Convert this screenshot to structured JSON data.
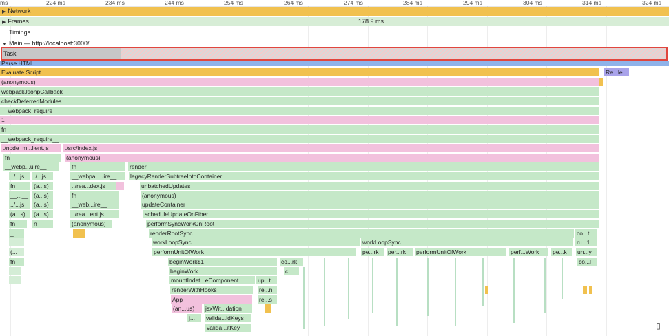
{
  "ruler": {
    "ticks": [
      "ms",
      "224 ms",
      "234 ms",
      "244 ms",
      "254 ms",
      "264 ms",
      "274 ms",
      "284 ms",
      "294 ms",
      "304 ms",
      "314 ms",
      "324 ms"
    ]
  },
  "tracks": {
    "network": "Network",
    "frames": "Frames",
    "frames_value": "178.9 ms",
    "timings": "Timings",
    "main": "Main — http://localhost:3000/"
  },
  "task": {
    "label": "Task"
  },
  "flame": {
    "parse_html": "Parse HTML",
    "evaluate_script": "Evaluate Script",
    "rele": "Re...le",
    "anonymous": "(anonymous)",
    "webpack_jsonp": "webpackJsonpCallback",
    "check_deferred": "checkDeferredModules",
    "webpack_require": "__webpack_require__",
    "one": "1",
    "fn": "fn",
    "webpack_require2": "__webpack_require__",
    "node_m": "./node_m...lient.js",
    "src_index": "./src/index.js",
    "fn2": "fn",
    "anonymous2": "(anonymous)",
    "webp_uire": "__webp...uire__",
    "fn3": "fn",
    "render": "render",
    "js1": "../...js",
    "js2": "./...js",
    "webpa_uire": "__webpa...uire__",
    "legacy": "legacyRenderSubtreeIntoContainer",
    "fn4": "fn",
    "as1": "(a...s)",
    "rea_dex": "../rea...dex.js",
    "unbatched": "unbatchedUpdates",
    "dots1": "__...__",
    "as2": "(a...s)",
    "fn5": "fn",
    "anonymous3": "(anonymous)",
    "js3": "../...js",
    "as3": "(a...s)",
    "web_ire": "__web...ire__",
    "update_container": "updateContainer",
    "as4": "(a...s)",
    "as5": "(a...s)",
    "rea_ent": "../rea...ent.js",
    "schedule": "scheduleUpdateOnFiber",
    "fn6": "fn",
    "n": "n",
    "anonymous4": "(anonymous)",
    "perform_sync": "performSyncWorkOnRoot",
    "small_a": "_...",
    "render_root": "renderRootSync",
    "cot": "co...t",
    "dots2": "...",
    "work_loop": "workLoopSync",
    "work_loop2": "workLoopSync",
    "ru1": "ru...1",
    "paren": "(...",
    "perform_unit": "performUnitOfWork",
    "perk": "pe...rk",
    "perrk": "per...rk",
    "perform_unit2": "performUnitOfWork",
    "perf_work": "perf...Work",
    "pek": "pe...k",
    "uny": "un...y",
    "fn7": "fn",
    "begin1": "beginWork$1",
    "cork": "co...rk",
    "col": "co...l",
    "begin2": "beginWork",
    "c": "c...",
    "dots3": "...",
    "mount": "mountIndet...eComponent",
    "upt": "up...t",
    "render_hooks": "renderWithHooks",
    "ren": "re...n",
    "app": "App",
    "res": "re...s",
    "anus": "(an...us)",
    "jsxwit": "jsxWit...dation",
    "j": "j...",
    "valid1": "valida...ldKeys",
    "valid2": "valida...itKey"
  },
  "colors": {
    "green": "#c5e8c8",
    "pink": "#f2c1dd",
    "yellow": "#f1c14f",
    "blue": "#8fb3ea",
    "purple": "#a9a3ea",
    "task_border": "#e0463e"
  },
  "bottom_icon": "record-icon"
}
